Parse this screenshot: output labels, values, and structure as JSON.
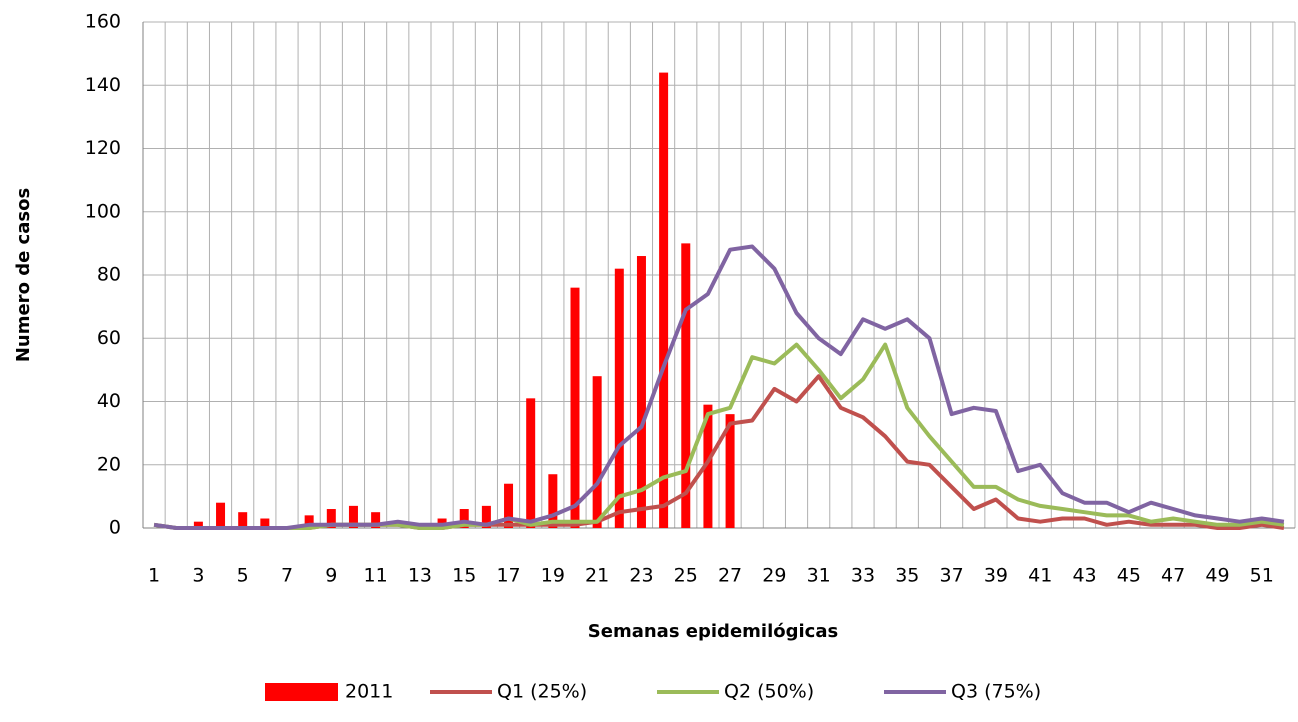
{
  "chart_data": {
    "type": "bar-line",
    "xlabel": "Semanas epidemilógicas",
    "ylabel": "Numero de casos",
    "categories": [
      "1",
      null,
      "3",
      null,
      "5",
      null,
      "7",
      null,
      "9",
      null,
      "11",
      null,
      "13",
      null,
      "15",
      null,
      "17",
      null,
      "19",
      null,
      "21",
      null,
      "23",
      null,
      "25",
      null,
      "27",
      null,
      "29",
      null,
      "31",
      null,
      "33",
      null,
      "35",
      null,
      "37",
      null,
      "39",
      null,
      "41",
      null,
      "43",
      null,
      "45",
      null,
      "47",
      null,
      "49",
      null,
      "51",
      null
    ],
    "series": [
      {
        "name": "2011",
        "kind": "bar",
        "color": "#ff0000",
        "values": [
          0,
          0,
          2,
          8,
          5,
          3,
          0,
          4,
          6,
          7,
          5,
          0,
          0,
          3,
          6,
          7,
          14,
          41,
          17,
          76,
          48,
          82,
          86,
          144,
          90,
          39,
          36,
          null,
          null,
          null,
          null,
          null,
          null,
          null,
          null,
          null,
          null,
          null,
          null,
          null,
          null,
          null,
          null,
          null,
          null,
          null,
          null,
          null,
          null,
          null,
          null,
          null
        ]
      },
      {
        "name": "Q1 (25%)",
        "kind": "line",
        "color": "#c0504d",
        "values": [
          1,
          0,
          0,
          0,
          0,
          0,
          0,
          0,
          1,
          1,
          1,
          1,
          0,
          0,
          1,
          1,
          1,
          1,
          1,
          1,
          2,
          5,
          6,
          7,
          11,
          21,
          33,
          34,
          44,
          40,
          48,
          38,
          35,
          29,
          21,
          20,
          13,
          6,
          9,
          3,
          2,
          3,
          3,
          1,
          2,
          1,
          1,
          1,
          0,
          0,
          1,
          0
        ]
      },
      {
        "name": "Q2 (50%)",
        "kind": "line",
        "color": "#9bbb59",
        "values": [
          1,
          0,
          0,
          0,
          0,
          0,
          0,
          0,
          1,
          1,
          1,
          1,
          0,
          0,
          1,
          1,
          3,
          1,
          2,
          2,
          2,
          10,
          12,
          16,
          18,
          36,
          38,
          54,
          52,
          58,
          50,
          41,
          47,
          58,
          38,
          29,
          21,
          13,
          13,
          9,
          7,
          6,
          5,
          4,
          4,
          2,
          3,
          2,
          1,
          1,
          2,
          1
        ]
      },
      {
        "name": "Q3 (75%)",
        "kind": "line",
        "color": "#8064a2",
        "values": [
          1,
          0,
          0,
          0,
          0,
          0,
          0,
          1,
          1,
          1,
          1,
          2,
          1,
          1,
          2,
          1,
          3,
          2,
          4,
          7,
          14,
          26,
          32,
          51,
          69,
          74,
          88,
          89,
          82,
          68,
          60,
          55,
          66,
          63,
          66,
          60,
          36,
          38,
          37,
          18,
          20,
          11,
          8,
          8,
          5,
          8,
          6,
          4,
          3,
          2,
          3,
          2
        ]
      }
    ],
    "ylim": [
      0,
      160
    ],
    "yticks": [
      0,
      20,
      40,
      60,
      80,
      100,
      120,
      140,
      160
    ],
    "grid": true
  }
}
